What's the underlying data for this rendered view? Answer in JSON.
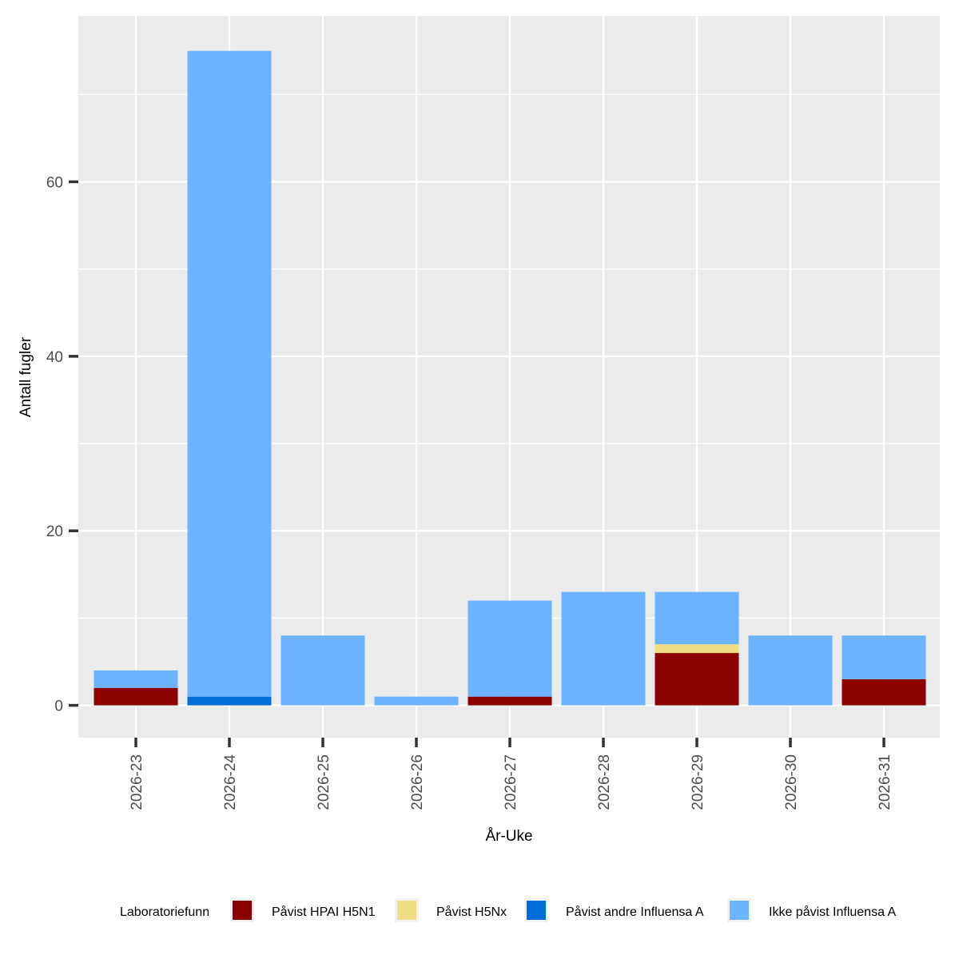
{
  "chart_data": {
    "type": "bar",
    "stacked": true,
    "xlabel": "År-Uke",
    "ylabel": "Antall fugler",
    "categories": [
      "2026-23",
      "2026-24",
      "2026-25",
      "2026-26",
      "2026-27",
      "2026-28",
      "2026-29",
      "2026-30",
      "2026-31"
    ],
    "y_ticks": [
      0,
      20,
      40,
      60
    ],
    "ylim": [
      -3.7,
      79
    ],
    "grid": true,
    "legend": {
      "position": "bottom",
      "title": "Laboratoriefunn"
    },
    "series": [
      {
        "name": "Påvist HPAI H5N1",
        "color": "#8B0000",
        "values": [
          2,
          0,
          0,
          0,
          1,
          0,
          6,
          0,
          3
        ]
      },
      {
        "name": "Påvist H5Nx",
        "color": "#F0DC82",
        "values": [
          0,
          0,
          0,
          0,
          0,
          0,
          1,
          0,
          0
        ]
      },
      {
        "name": "Påvist andre Influensa A",
        "color": "#006ED9",
        "values": [
          0,
          1,
          0,
          0,
          0,
          0,
          0,
          0,
          0
        ]
      },
      {
        "name": "Ikke påvist Influensa A",
        "color": "#6CB4FF",
        "values": [
          2,
          74,
          8,
          1,
          11,
          13,
          6,
          8,
          5
        ]
      }
    ]
  }
}
